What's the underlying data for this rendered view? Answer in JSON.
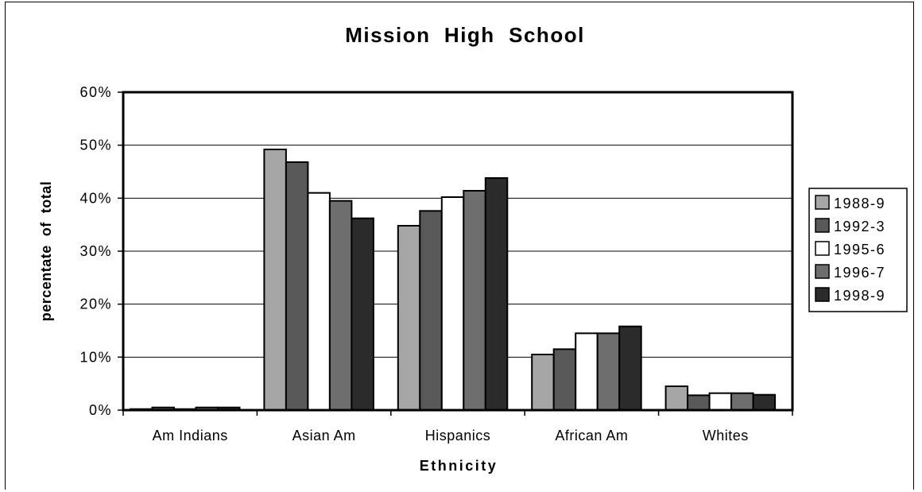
{
  "chart_data": {
    "type": "bar",
    "title": "Mission  High  School",
    "xlabel": "Ethnicity",
    "ylabel": "percentate  of  total",
    "categories": [
      "Am Indians",
      "Asian Am",
      "Hispanics",
      "African Am",
      "Whites"
    ],
    "series": [
      {
        "name": "1988-9",
        "color": "#a6a6a6",
        "values": [
          0.2,
          49.2,
          34.8,
          10.5,
          4.5
        ]
      },
      {
        "name": "1992-3",
        "color": "#595959",
        "values": [
          0.5,
          46.8,
          37.6,
          11.5,
          2.8
        ]
      },
      {
        "name": "1995-6",
        "color": "#ffffff",
        "values": [
          0.2,
          41.0,
          40.2,
          14.5,
          3.2
        ]
      },
      {
        "name": "1996-7",
        "color": "#6e6e6e",
        "values": [
          0.5,
          39.5,
          41.4,
          14.5,
          3.2
        ]
      },
      {
        "name": "1998-9",
        "color": "#2b2b2b",
        "values": [
          0.5,
          36.2,
          43.8,
          15.8,
          2.9
        ]
      }
    ],
    "ylim": [
      0,
      60
    ],
    "yticks": [
      "0%",
      "10%",
      "20%",
      "30%",
      "40%",
      "50%",
      "60%"
    ],
    "grid": true,
    "legend_position": "right"
  }
}
